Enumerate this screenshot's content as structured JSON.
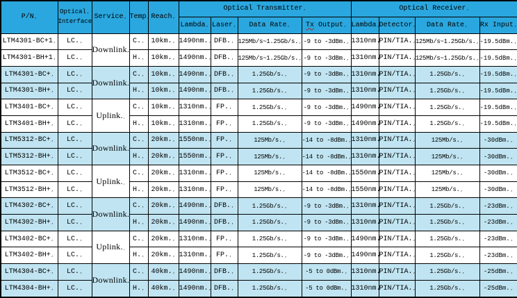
{
  "eol_mark": ",",
  "colors": {
    "header_bg": "#2AA7DF",
    "row_shaded_bg": "#C0E4F1",
    "row_bg": "#FFFFFF",
    "border": "#000000",
    "text": "#000000",
    "spellcheck_underline": "#983232"
  },
  "header": {
    "pn": "P/N",
    "optical_interface_line1": "Optical",
    "optical_interface_line2": "Interface",
    "service": "Service",
    "temp": "Temp",
    "reach": "Reach",
    "transmitter_group": "Optical Transmitter",
    "receiver_group": "Optical Receiver",
    "tx_lambda": "Lambda",
    "laser": "Laser",
    "tx_data_rate": "Data Rate",
    "tx_output_word1": "Tx",
    "tx_output_word2": "Output",
    "rx_lambda": "Lambda",
    "detector": "Detector",
    "rx_data_rate": "Data Rate",
    "rx_input": "Rx Input"
  },
  "rows": [
    {
      "pn": "LTM4301-BC+1",
      "iface": "LC.",
      "service": "Downlink.",
      "temp": "C.",
      "reach": "10km.",
      "txl": "1490nm.",
      "laser": "DFB.",
      "txr": "125Mb/s~1.25Gb/s.",
      "txo": "-9 to -3dBm.",
      "rxl": "1310nm.",
      "det": "PIN/TIA.",
      "rxr": "125Mb/s~1.25Gb/s.",
      "rxi": "-19.5dBm.",
      "shaded": false
    },
    {
      "pn": "LTM4301-BH+1",
      "iface": "LC.",
      "temp": "H.",
      "reach": "10km.",
      "txl": "1490nm.",
      "laser": "DFB.",
      "txr": "125Mb/s~1.25Gb/s.",
      "txo": "-9 to -3dBm.",
      "rxl": "1310nm.",
      "det": "PIN/TIA.",
      "rxr": "125Mb/s~1.25Gb/s.",
      "rxi": "-19.5dBm.",
      "shaded": false
    },
    {
      "pn": "LTM4301-BC+",
      "iface": "LC.",
      "service": "Downlink.",
      "temp": "C.",
      "reach": "10km.",
      "txl": "1490nm.",
      "laser": "DFB.",
      "txr": "1.25Gb/s.",
      "txo": "-9 to -3dBm.",
      "rxl": "1310nm.",
      "det": "PIN/TIA.",
      "rxr": "1.25Gb/s.",
      "rxi": "-19.5dBm.",
      "shaded": true
    },
    {
      "pn": "LTM4301-BH+",
      "iface": "LC.",
      "temp": "H.",
      "reach": "10km.",
      "txl": "1490nm.",
      "laser": "DFB.",
      "txr": "1.25Gb/s.",
      "txo": "-9 to -3dBm.",
      "rxl": "1310nm.",
      "det": "PIN/TIA.",
      "rxr": "1.25Gb/s.",
      "rxi": "-19.5dBm.",
      "shaded": true
    },
    {
      "pn": "LTM3401-BC+",
      "iface": "LC.",
      "service": "Uplink.",
      "temp": "C.",
      "reach": "10km.",
      "txl": "1310nm.",
      "laser": "FP.",
      "txr": "1.25Gb/s.",
      "txo": "-9 to -3dBm.",
      "rxl": "1490nm.",
      "det": "PIN/TIA.",
      "rxr": "1.25Gb/s.",
      "rxi": "-19.5dBm.",
      "shaded": false
    },
    {
      "pn": "LTM3401-BH+",
      "iface": "LC.",
      "temp": "H.",
      "reach": "10km.",
      "txl": "1310nm.",
      "laser": "FP.",
      "txr": "1.25Gb/s.",
      "txo": "-9 to -3dBm.",
      "rxl": "1490nm.",
      "det": "PIN/TIA.",
      "rxr": "1.25Gb/s.",
      "rxi": "-19.5dBm.",
      "shaded": false
    },
    {
      "pn": "LTM5312-BC+",
      "iface": "LC.",
      "service": "Downlink.",
      "temp": "C.",
      "reach": "20km.",
      "txl": "1550nm.",
      "laser": "FP.",
      "txr": "125Mb/s.",
      "txo": "-14 to -8dBm.",
      "rxl": "1310nm.",
      "det": "PIN/TIA.",
      "rxr": "125Mb/s.",
      "rxi": "-30dBm.",
      "shaded": true
    },
    {
      "pn": "LTM5312-BH+",
      "iface": "LC.",
      "temp": "H.",
      "reach": "20km.",
      "txl": "1550nm.",
      "laser": "FP.",
      "txr": "125Mb/s.",
      "txo": "-14 to -8dBm.",
      "rxl": "1310nm.",
      "det": "PIN/TIA.",
      "rxr": "125Mb/s.",
      "rxi": "-30dBm.",
      "shaded": true
    },
    {
      "pn": "LTM3512-BC+",
      "iface": "LC.",
      "service": "Uplink.",
      "temp": "C.",
      "reach": "20km.",
      "txl": "1310nm.",
      "laser": "FP.",
      "txr": "125Mb/s.",
      "txo": "-14 to -8dBm.",
      "rxl": "1550nm.",
      "det": "PIN/TIA.",
      "rxr": "125Mb/s.",
      "rxi": "-30dBm.",
      "shaded": false
    },
    {
      "pn": "LTM3512-BH+",
      "iface": "LC.",
      "temp": "H.",
      "reach": "20km.",
      "txl": "1310nm.",
      "laser": "FP.",
      "txr": "125Mb/s.",
      "txo": "-14 to -8dBm.",
      "rxl": "1550nm.",
      "det": "PIN/TIA.",
      "rxr": "125Mb/s.",
      "rxi": "-30dBm.",
      "shaded": false
    },
    {
      "pn": "LTM4302-BC+",
      "iface": "LC.",
      "service": "Downlink.",
      "temp": "C.",
      "reach": "20km.",
      "txl": "1490nm.",
      "laser": "DFB.",
      "txr": "1.25Gb/s.",
      "txo": "-9 to -3dBm.",
      "rxl": "1310nm.",
      "det": "PIN/TIA.",
      "rxr": "1.25Gb/s.",
      "rxi": "-23dBm.",
      "shaded": true
    },
    {
      "pn": "LTM4302-BH+",
      "iface": "LC.",
      "temp": "H.",
      "reach": "20km.",
      "txl": "1490nm.",
      "laser": "DFB.",
      "txr": "1.25Gb/s.",
      "txo": "-9 to -3dBm.",
      "rxl": "1310nm.",
      "det": "PIN/TIA.",
      "rxr": "1.25Gb/s.",
      "rxi": "-23dBm.",
      "shaded": true
    },
    {
      "pn": "LTM3402-BC+",
      "iface": "LC.",
      "service": "Uplink.",
      "temp": "C.",
      "reach": "20km.",
      "txl": "1310nm.",
      "laser": "FP.",
      "txr": "1.25Gb/s.",
      "txo": "-9 to -3dBm.",
      "rxl": "1490nm.",
      "det": "PIN/TIA.",
      "rxr": "1.25Gb/s.",
      "rxi": "-23dBm.",
      "shaded": false
    },
    {
      "pn": "LTM3402-BH+",
      "iface": "LC.",
      "temp": "H.",
      "reach": "20km.",
      "txl": "1310nm.",
      "laser": "FP.",
      "txr": "1.25Gb/s.",
      "txo": "-9 to -3dBm.",
      "rxl": "1490nm.",
      "det": "PIN/TIA.",
      "rxr": "1.25Gb/s.",
      "rxi": "-23dBm.",
      "shaded": false
    },
    {
      "pn": "LTM4304-BC+",
      "iface": "LC.",
      "service": "Downlink.",
      "temp": "C.",
      "reach": "40km.",
      "txl": "1490nm.",
      "laser": "DFB.",
      "txr": "1.25Gb/s.",
      "txo": "-5 to 0dBm.",
      "rxl": "1310nm.",
      "det": "PIN/TIA.",
      "rxr": "1.25Gb/s.",
      "rxi": "-25dBm.",
      "shaded": true
    },
    {
      "pn": "LTM4304-BH+",
      "iface": "LC.",
      "temp": "H.",
      "reach": "40km.",
      "txl": "1490nm.",
      "laser": "DFB.",
      "txr": "1.25Gb/s.",
      "txo": "-5 to 0dBm.",
      "rxl": "1310nm.",
      "det": "PIN/TIA.",
      "rxr": "1.25Gb/s.",
      "rxi": "-25dBm.",
      "shaded": true
    }
  ]
}
